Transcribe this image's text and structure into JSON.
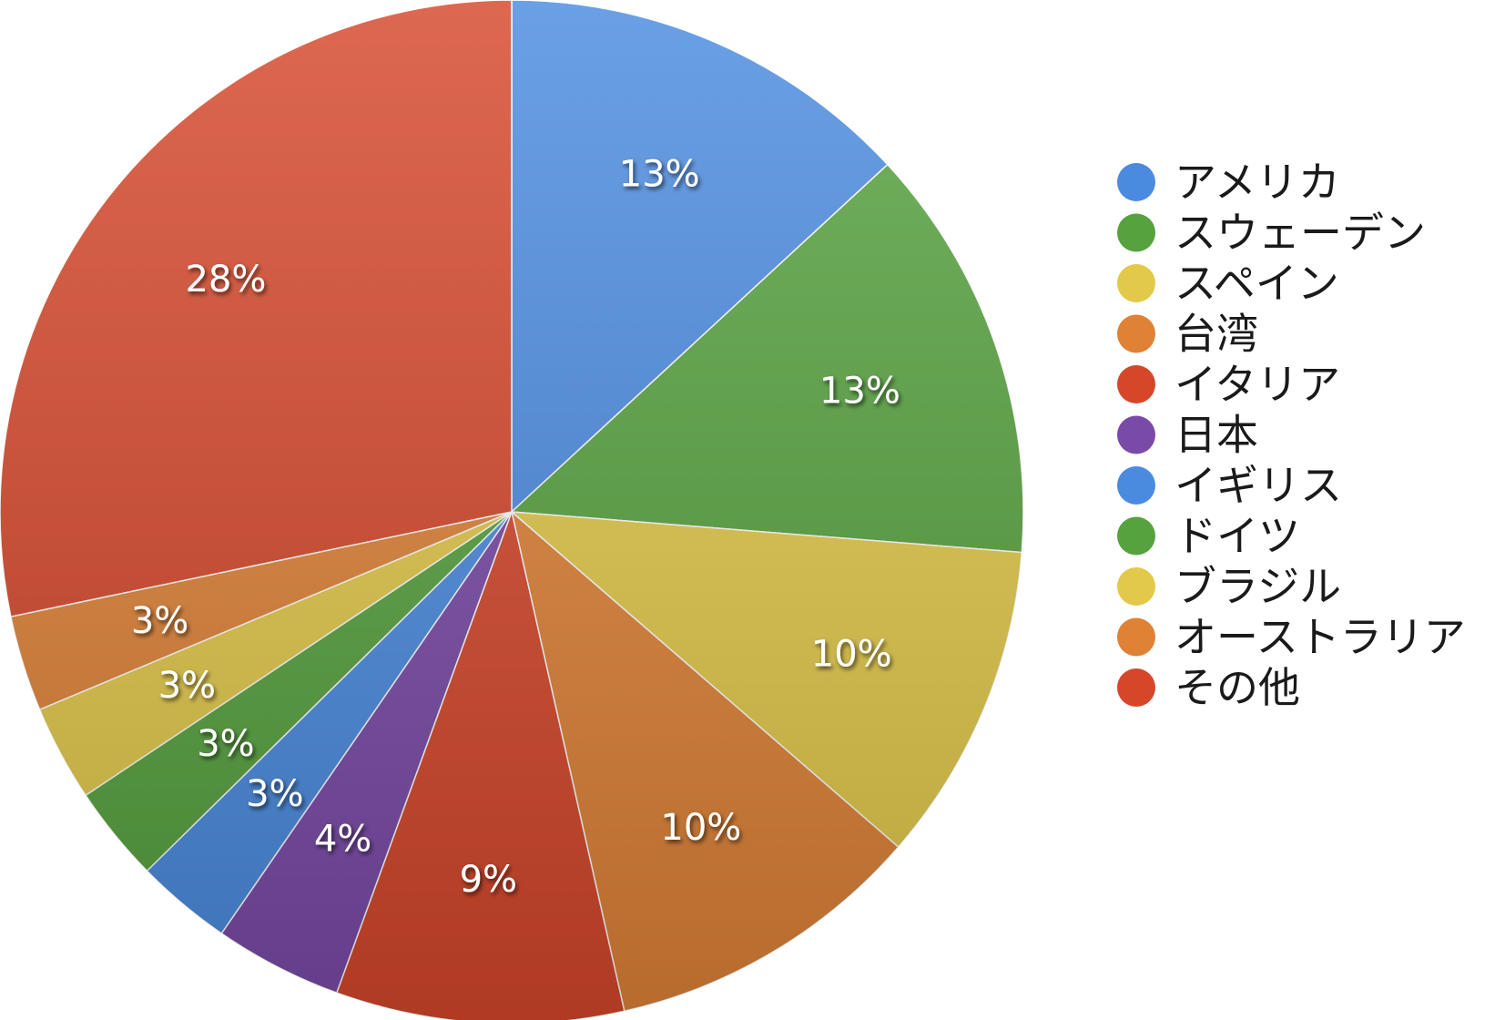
{
  "chart_data": {
    "type": "pie",
    "slices": [
      {
        "label": "アメリカ",
        "value": 13,
        "text": "13%",
        "color": "#4a8be0"
      },
      {
        "label": "スウェーデン",
        "value": 13,
        "text": "13%",
        "color": "#56a23e"
      },
      {
        "label": "スペイン",
        "value": 10,
        "text": "10%",
        "color": "#e3c94a"
      },
      {
        "label": "台湾",
        "value": 10,
        "text": "10%",
        "color": "#df8236"
      },
      {
        "label": "イタリア",
        "value": 9,
        "text": "9%",
        "color": "#d6472a"
      },
      {
        "label": "日本",
        "value": 4,
        "text": "4%",
        "color": "#7a4aa8"
      },
      {
        "label": "イギリス",
        "value": 3,
        "text": "3%",
        "color": "#4a8be0"
      },
      {
        "label": "ドイツ",
        "value": 3,
        "text": "3%",
        "color": "#56a23e"
      },
      {
        "label": "ブラジル",
        "value": 3,
        "text": "3%",
        "color": "#e3c94a"
      },
      {
        "label": "オーストラリア",
        "value": 3,
        "text": "3%",
        "color": "#df8236"
      },
      {
        "label": "その他",
        "value": 28,
        "text": "28%",
        "color": "#d6472a"
      }
    ],
    "legend_position": "right"
  }
}
